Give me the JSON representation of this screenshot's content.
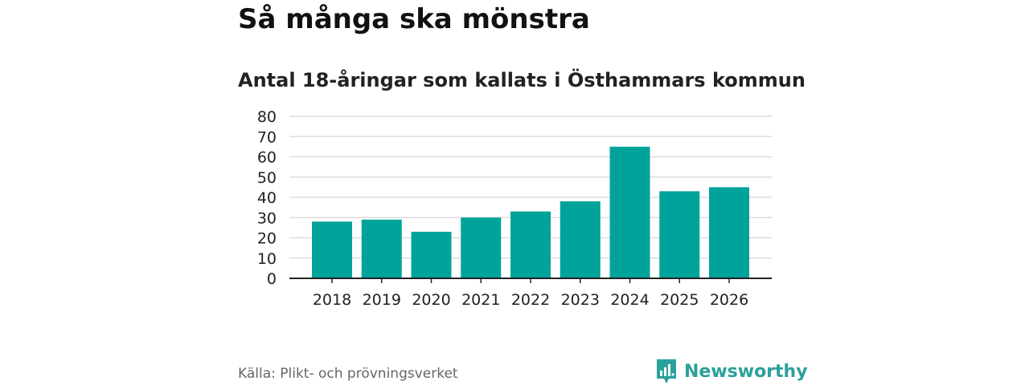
{
  "header": {
    "title": "Så många ska mönstra",
    "subtitle": "Antal 18-åringar som kallats i Östhammars kommun"
  },
  "footer": {
    "source": "Källa: Plikt- och prövningsverket",
    "brand": "Newsworthy"
  },
  "colors": {
    "bar": "#00a39a",
    "grid": "#dddddd",
    "axis": "#222222",
    "brand": "#2aa09a"
  },
  "chart_data": {
    "type": "bar",
    "title": "Antal 18-åringar som kallats i Östhammars kommun",
    "xlabel": "",
    "ylabel": "",
    "categories": [
      "2018",
      "2019",
      "2020",
      "2021",
      "2022",
      "2023",
      "2024",
      "2025",
      "2026"
    ],
    "values": [
      28,
      29,
      23,
      30,
      33,
      38,
      65,
      43,
      45
    ],
    "ylim": [
      0,
      80
    ],
    "yticks": [
      0,
      10,
      20,
      30,
      40,
      50,
      60,
      70,
      80
    ],
    "grid": true,
    "legend": "none"
  }
}
